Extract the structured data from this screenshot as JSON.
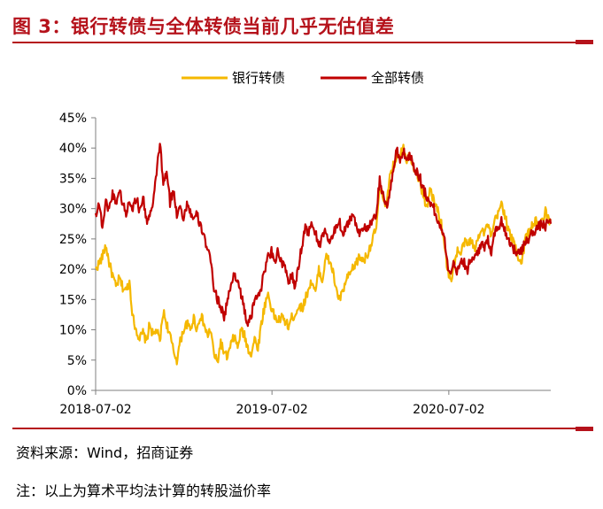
{
  "figure": {
    "title": "图 3：银行转债与全体转债当前几乎无估值差",
    "source": "资料来源：Wind，招商证券",
    "note": "注：以上为算术平均法计算的转股溢价率"
  },
  "colors": {
    "accent": "#b5121b",
    "bank": "#f5b800",
    "all": "#c00000",
    "axis": "#7f7f7f"
  },
  "chart_data": {
    "type": "line",
    "title": "",
    "xlabel": "",
    "ylabel": "",
    "ylim": [
      0,
      45
    ],
    "yticks": [
      "0%",
      "5%",
      "10%",
      "15%",
      "20%",
      "25%",
      "30%",
      "35%",
      "40%",
      "45%"
    ],
    "xticks": [
      "2018-07-02",
      "2019-07-02",
      "2020-07-02"
    ],
    "xlim": [
      "2018-07-02",
      "2021-01-29"
    ],
    "grid": false,
    "legend_position": "top-center",
    "series": [
      {
        "name": "银行转债",
        "color": "#f5b800",
        "points": [
          [
            "2018-07-02",
            20
          ],
          [
            "2018-07-09",
            21
          ],
          [
            "2018-07-16",
            22
          ],
          [
            "2018-07-23",
            24
          ],
          [
            "2018-07-30",
            21
          ],
          [
            "2018-08-06",
            19
          ],
          [
            "2018-08-13",
            17
          ],
          [
            "2018-08-20",
            18.5
          ],
          [
            "2018-08-27",
            17
          ],
          [
            "2018-09-03",
            16.5
          ],
          [
            "2018-09-10",
            18
          ],
          [
            "2018-09-17",
            12
          ],
          [
            "2018-09-24",
            10
          ],
          [
            "2018-10-01",
            8.5
          ],
          [
            "2018-10-08",
            9.5
          ],
          [
            "2018-10-15",
            8
          ],
          [
            "2018-10-22",
            11
          ],
          [
            "2018-10-29",
            9
          ],
          [
            "2018-11-05",
            10
          ],
          [
            "2018-11-12",
            8
          ],
          [
            "2018-11-19",
            13
          ],
          [
            "2018-11-26",
            11
          ],
          [
            "2018-12-03",
            9
          ],
          [
            "2018-12-10",
            6.5
          ],
          [
            "2018-12-17",
            5
          ],
          [
            "2018-12-24",
            8
          ],
          [
            "2018-12-31",
            10
          ],
          [
            "2019-01-07",
            11
          ],
          [
            "2019-01-14",
            10
          ],
          [
            "2019-01-21",
            12
          ],
          [
            "2019-01-28",
            10
          ],
          [
            "2019-02-04",
            12.5
          ],
          [
            "2019-02-11",
            11
          ],
          [
            "2019-02-18",
            9
          ],
          [
            "2019-02-25",
            10
          ],
          [
            "2019-03-04",
            6
          ],
          [
            "2019-03-11",
            4.5
          ],
          [
            "2019-03-18",
            8
          ],
          [
            "2019-03-25",
            6
          ],
          [
            "2019-04-01",
            5.5
          ],
          [
            "2019-04-08",
            7.5
          ],
          [
            "2019-04-15",
            9
          ],
          [
            "2019-04-22",
            7
          ],
          [
            "2019-04-29",
            10
          ],
          [
            "2019-05-06",
            9
          ],
          [
            "2019-05-13",
            7
          ],
          [
            "2019-05-20",
            6
          ],
          [
            "2019-05-27",
            8.5
          ],
          [
            "2019-06-03",
            7
          ],
          [
            "2019-06-10",
            11
          ],
          [
            "2019-06-17",
            14
          ],
          [
            "2019-06-24",
            16
          ],
          [
            "2019-07-01",
            13.5
          ],
          [
            "2019-07-08",
            12
          ],
          [
            "2019-07-15",
            11.5
          ],
          [
            "2019-07-22",
            12
          ],
          [
            "2019-07-29",
            11.5
          ],
          [
            "2019-08-05",
            10.5
          ],
          [
            "2019-08-12",
            12
          ],
          [
            "2019-08-19",
            12.5
          ],
          [
            "2019-08-26",
            14
          ],
          [
            "2019-09-02",
            13.5
          ],
          [
            "2019-09-09",
            15
          ],
          [
            "2019-09-16",
            17
          ],
          [
            "2019-09-23",
            18
          ],
          [
            "2019-09-30",
            16
          ],
          [
            "2019-10-07",
            20
          ],
          [
            "2019-10-14",
            18
          ],
          [
            "2019-10-21",
            22
          ],
          [
            "2019-10-28",
            21.5
          ],
          [
            "2019-11-04",
            20
          ],
          [
            "2019-11-11",
            17
          ],
          [
            "2019-11-18",
            15
          ],
          [
            "2019-11-25",
            16
          ],
          [
            "2019-12-02",
            18
          ],
          [
            "2019-12-09",
            19
          ],
          [
            "2019-12-16",
            20
          ],
          [
            "2019-12-23",
            21
          ],
          [
            "2019-12-30",
            22
          ],
          [
            "2020-01-06",
            21.5
          ],
          [
            "2020-01-13",
            22
          ],
          [
            "2020-01-20",
            23.5
          ],
          [
            "2020-01-27",
            25
          ],
          [
            "2020-02-03",
            27
          ],
          [
            "2020-02-10",
            33
          ],
          [
            "2020-02-17",
            32
          ],
          [
            "2020-02-24",
            30.5
          ],
          [
            "2020-03-02",
            35
          ],
          [
            "2020-03-09",
            37
          ],
          [
            "2020-03-16",
            38.5
          ],
          [
            "2020-03-23",
            39
          ],
          [
            "2020-03-30",
            40.5
          ],
          [
            "2020-04-06",
            38
          ],
          [
            "2020-04-13",
            39
          ],
          [
            "2020-04-20",
            37
          ],
          [
            "2020-04-27",
            36
          ],
          [
            "2020-05-04",
            34
          ],
          [
            "2020-05-11",
            32
          ],
          [
            "2020-05-18",
            30
          ],
          [
            "2020-05-25",
            33.5
          ],
          [
            "2020-06-01",
            31
          ],
          [
            "2020-06-08",
            30
          ],
          [
            "2020-06-15",
            28
          ],
          [
            "2020-06-22",
            25
          ],
          [
            "2020-06-29",
            20
          ],
          [
            "2020-07-06",
            18
          ],
          [
            "2020-07-13",
            21
          ],
          [
            "2020-07-20",
            23
          ],
          [
            "2020-07-27",
            22.5
          ],
          [
            "2020-08-03",
            24.5
          ],
          [
            "2020-08-10",
            24
          ],
          [
            "2020-08-17",
            25
          ],
          [
            "2020-08-24",
            23
          ],
          [
            "2020-08-31",
            25
          ],
          [
            "2020-09-07",
            27
          ],
          [
            "2020-09-14",
            26
          ],
          [
            "2020-09-21",
            27.5
          ],
          [
            "2020-09-28",
            25
          ],
          [
            "2020-10-05",
            28
          ],
          [
            "2020-10-12",
            29
          ],
          [
            "2020-10-19",
            31
          ],
          [
            "2020-10-26",
            29
          ],
          [
            "2020-11-02",
            26.5
          ],
          [
            "2020-11-09",
            25
          ],
          [
            "2020-11-16",
            24
          ],
          [
            "2020-11-23",
            22
          ],
          [
            "2020-11-30",
            21
          ],
          [
            "2020-12-07",
            25
          ],
          [
            "2020-12-14",
            26
          ],
          [
            "2020-12-21",
            27
          ],
          [
            "2020-12-28",
            28
          ],
          [
            "2021-01-04",
            27
          ],
          [
            "2021-01-11",
            28
          ],
          [
            "2021-01-18",
            29.5
          ],
          [
            "2021-01-25",
            28
          ],
          [
            "2021-01-29",
            28
          ]
        ]
      },
      {
        "name": "全部转债",
        "color": "#c00000",
        "points": [
          [
            "2018-07-02",
            29
          ],
          [
            "2018-07-09",
            31
          ],
          [
            "2018-07-16",
            27
          ],
          [
            "2018-07-23",
            31
          ],
          [
            "2018-07-30",
            30
          ],
          [
            "2018-08-06",
            32.5
          ],
          [
            "2018-08-13",
            31
          ],
          [
            "2018-08-20",
            33
          ],
          [
            "2018-08-27",
            31
          ],
          [
            "2018-09-03",
            29
          ],
          [
            "2018-09-10",
            31.5
          ],
          [
            "2018-09-17",
            30
          ],
          [
            "2018-09-24",
            32
          ],
          [
            "2018-10-01",
            29.5
          ],
          [
            "2018-10-08",
            32
          ],
          [
            "2018-10-15",
            28
          ],
          [
            "2018-10-22",
            29
          ],
          [
            "2018-10-29",
            30.5
          ],
          [
            "2018-11-05",
            36
          ],
          [
            "2018-11-12",
            41
          ],
          [
            "2018-11-19",
            34
          ],
          [
            "2018-11-26",
            36
          ],
          [
            "2018-12-03",
            31
          ],
          [
            "2018-12-10",
            33
          ],
          [
            "2018-12-17",
            29
          ],
          [
            "2018-12-24",
            31
          ],
          [
            "2018-12-31",
            28
          ],
          [
            "2019-01-07",
            31
          ],
          [
            "2019-01-14",
            29.5
          ],
          [
            "2019-01-21",
            28
          ],
          [
            "2019-01-28",
            29
          ],
          [
            "2019-02-04",
            27
          ],
          [
            "2019-02-11",
            26
          ],
          [
            "2019-02-18",
            23
          ],
          [
            "2019-02-25",
            21.5
          ],
          [
            "2019-03-04",
            17
          ],
          [
            "2019-03-11",
            15
          ],
          [
            "2019-03-18",
            14
          ],
          [
            "2019-03-25",
            12
          ],
          [
            "2019-04-01",
            15
          ],
          [
            "2019-04-08",
            17
          ],
          [
            "2019-04-15",
            19.5
          ],
          [
            "2019-04-22",
            18
          ],
          [
            "2019-04-29",
            16
          ],
          [
            "2019-05-06",
            13
          ],
          [
            "2019-05-13",
            11
          ],
          [
            "2019-05-20",
            12
          ],
          [
            "2019-05-27",
            15
          ],
          [
            "2019-06-03",
            16
          ],
          [
            "2019-06-10",
            17
          ],
          [
            "2019-06-17",
            20
          ],
          [
            "2019-06-24",
            22
          ],
          [
            "2019-07-01",
            23
          ],
          [
            "2019-07-08",
            21.5
          ],
          [
            "2019-07-15",
            23
          ],
          [
            "2019-07-22",
            21
          ],
          [
            "2019-07-29",
            20
          ],
          [
            "2019-08-05",
            18
          ],
          [
            "2019-08-12",
            19
          ],
          [
            "2019-08-19",
            17
          ],
          [
            "2019-08-26",
            20.5
          ],
          [
            "2019-09-02",
            24
          ],
          [
            "2019-09-09",
            27
          ],
          [
            "2019-09-16",
            26
          ],
          [
            "2019-09-23",
            27.5
          ],
          [
            "2019-09-30",
            26
          ],
          [
            "2019-10-07",
            24
          ],
          [
            "2019-10-14",
            25
          ],
          [
            "2019-10-21",
            26.5
          ],
          [
            "2019-10-28",
            24.5
          ],
          [
            "2019-11-04",
            25
          ],
          [
            "2019-11-11",
            27
          ],
          [
            "2019-11-18",
            28
          ],
          [
            "2019-11-25",
            26
          ],
          [
            "2019-12-02",
            27
          ],
          [
            "2019-12-09",
            28
          ],
          [
            "2019-12-16",
            29
          ],
          [
            "2019-12-23",
            27.5
          ],
          [
            "2019-12-30",
            26
          ],
          [
            "2020-01-06",
            27
          ],
          [
            "2020-01-13",
            26.5
          ],
          [
            "2020-01-20",
            27
          ],
          [
            "2020-01-27",
            28
          ],
          [
            "2020-02-03",
            29
          ],
          [
            "2020-02-10",
            35
          ],
          [
            "2020-02-17",
            32
          ],
          [
            "2020-02-24",
            30
          ],
          [
            "2020-03-02",
            33
          ],
          [
            "2020-03-09",
            36
          ],
          [
            "2020-03-16",
            40
          ],
          [
            "2020-03-23",
            38
          ],
          [
            "2020-03-30",
            39.5
          ],
          [
            "2020-04-06",
            38
          ],
          [
            "2020-04-13",
            39
          ],
          [
            "2020-04-20",
            37
          ],
          [
            "2020-04-27",
            36
          ],
          [
            "2020-05-04",
            35
          ],
          [
            "2020-05-11",
            33
          ],
          [
            "2020-05-18",
            32
          ],
          [
            "2020-05-25",
            31
          ],
          [
            "2020-06-01",
            30
          ],
          [
            "2020-06-08",
            28
          ],
          [
            "2020-06-15",
            27
          ],
          [
            "2020-06-22",
            26
          ],
          [
            "2020-06-29",
            21
          ],
          [
            "2020-07-06",
            19
          ],
          [
            "2020-07-13",
            21
          ],
          [
            "2020-07-20",
            19.5
          ],
          [
            "2020-07-27",
            22
          ],
          [
            "2020-08-03",
            21
          ],
          [
            "2020-08-10",
            20
          ],
          [
            "2020-08-17",
            22
          ],
          [
            "2020-08-24",
            21.5
          ],
          [
            "2020-08-31",
            23
          ],
          [
            "2020-09-07",
            24
          ],
          [
            "2020-09-14",
            23.5
          ],
          [
            "2020-09-21",
            25
          ],
          [
            "2020-09-28",
            23
          ],
          [
            "2020-10-05",
            26
          ],
          [
            "2020-10-12",
            27
          ],
          [
            "2020-10-19",
            28
          ],
          [
            "2020-10-26",
            26.5
          ],
          [
            "2020-11-02",
            25
          ],
          [
            "2020-11-09",
            24
          ],
          [
            "2020-11-16",
            23
          ],
          [
            "2020-11-23",
            22.5
          ],
          [
            "2020-11-30",
            23
          ],
          [
            "2020-12-07",
            24.5
          ],
          [
            "2020-12-14",
            25
          ],
          [
            "2020-12-21",
            26
          ],
          [
            "2020-12-28",
            26.5
          ],
          [
            "2021-01-04",
            27
          ],
          [
            "2021-01-11",
            27.5
          ],
          [
            "2021-01-18",
            27
          ],
          [
            "2021-01-25",
            28
          ],
          [
            "2021-01-29",
            27.5
          ]
        ]
      }
    ]
  }
}
